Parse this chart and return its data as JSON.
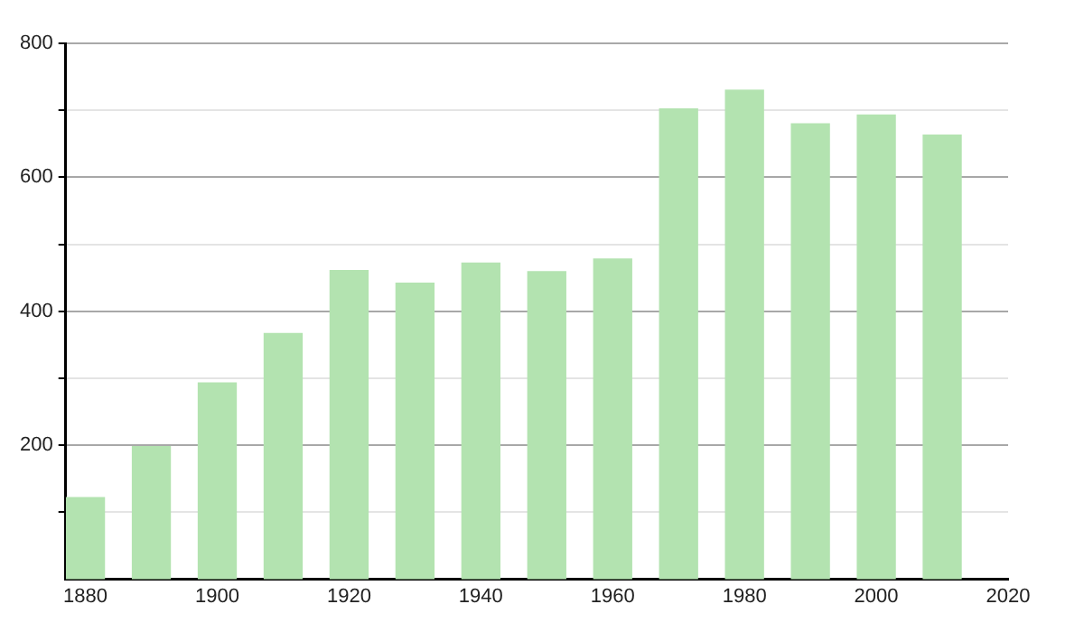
{
  "chart_data": {
    "type": "bar",
    "x": [
      1880,
      1890,
      1900,
      1910,
      1920,
      1930,
      1940,
      1950,
      1960,
      1970,
      1980,
      1990,
      2000,
      2010
    ],
    "values": [
      122,
      198,
      293,
      367,
      461,
      442,
      472,
      459,
      478,
      702,
      730,
      680,
      693,
      663
    ],
    "color": "#b3e3b0",
    "xlim": [
      1877,
      2020
    ],
    "xticks": [
      1880,
      1900,
      1920,
      1940,
      1960,
      1980,
      2000,
      2020
    ],
    "ylim": [
      0,
      800
    ],
    "yticks": [
      {
        "value": 100,
        "label": null
      },
      200,
      {
        "value": 300,
        "label": null
      },
      400,
      {
        "value": 500,
        "label": null
      },
      600,
      {
        "value": 700,
        "label": null
      },
      800
    ],
    "grid": "y",
    "legend": false
  }
}
